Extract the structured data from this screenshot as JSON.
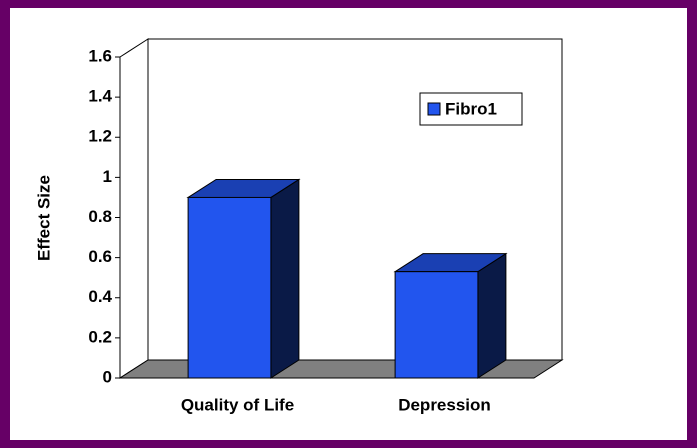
{
  "chart_data": {
    "type": "bar3d",
    "y_axis_label": "Effect Size",
    "categories": [
      "Quality of Life",
      "Depression"
    ],
    "series": [
      {
        "name": "Fibro1",
        "color": "#2255ee",
        "values": [
          0.9,
          0.53
        ]
      }
    ],
    "ylim": [
      0,
      1.6
    ],
    "yticks": [
      0,
      0.2,
      0.4,
      0.6,
      0.8,
      1,
      1.2,
      1.4,
      1.6
    ],
    "legend": "right",
    "grid": false
  }
}
